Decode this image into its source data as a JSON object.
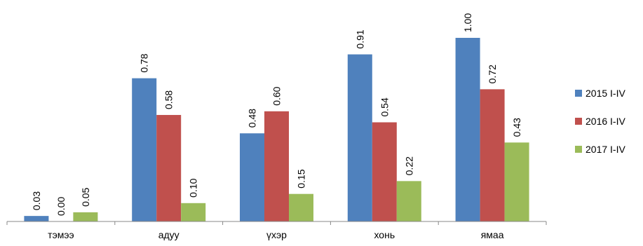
{
  "chart_data": {
    "type": "bar",
    "categories": [
      "тэмээ",
      "адуу",
      "үхэр",
      "хонь",
      "ямаа"
    ],
    "series": [
      {
        "name": "2015 I-IV",
        "color": "#4F81BD",
        "values": [
          0.03,
          0.78,
          0.48,
          0.91,
          1.0
        ],
        "labels": [
          "0.03",
          "0.78",
          "0.48",
          "0.91",
          "1.00"
        ]
      },
      {
        "name": "2016 I-IV",
        "color": "#C0504D",
        "values": [
          0.0,
          0.58,
          0.6,
          0.54,
          0.72
        ],
        "labels": [
          "0.00",
          "0.58",
          "0.60",
          "0.54",
          "0.72"
        ]
      },
      {
        "name": "2017 I-IV",
        "color": "#9BBB59",
        "values": [
          0.05,
          0.1,
          0.15,
          0.22,
          0.43
        ],
        "labels": [
          "0.05",
          "0.10",
          "0.15",
          "0.22",
          "0.43"
        ]
      }
    ],
    "title": "",
    "xlabel": "",
    "ylabel": "",
    "ylim": [
      0,
      1.05
    ],
    "grid": false,
    "legend_position": "right"
  }
}
